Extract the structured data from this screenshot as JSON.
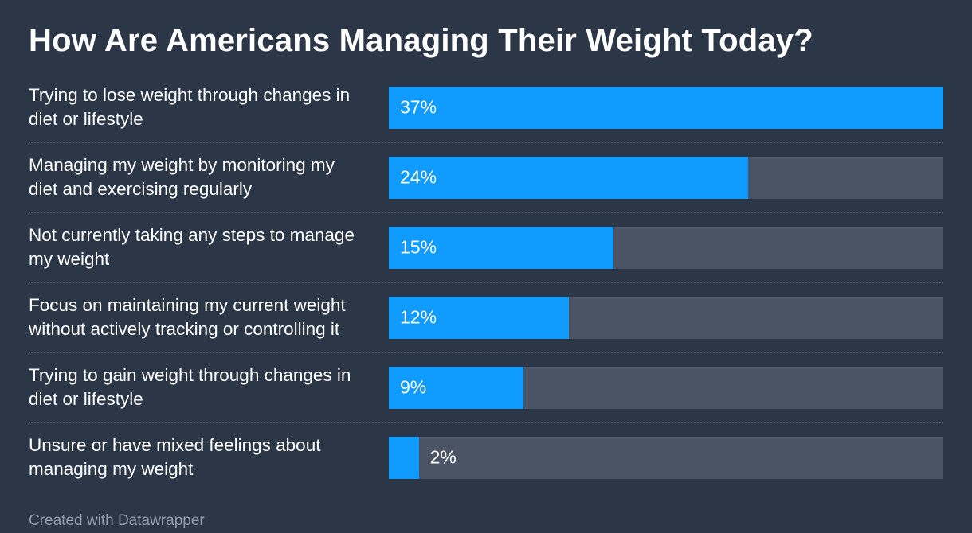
{
  "title": "How Are Americans Managing Their Weight Today?",
  "footer": "Created with Datawrapper",
  "colors": {
    "background": "#2b3647",
    "bar": "#0f9bff",
    "track": "#4a5464",
    "text": "#ffffff",
    "footer_text": "#949dab"
  },
  "chart_data": {
    "type": "bar",
    "orientation": "horizontal",
    "title": "How Are Americans Managing Their Weight Today?",
    "categories": [
      "Trying to lose weight through changes in diet or lifestyle",
      "Managing my weight by monitoring my diet and exercising regularly",
      "Not currently taking any steps to manage my weight",
      "Focus on maintaining my current weight without actively tracking or controlling it",
      "Trying to gain weight through changes in diet or lifestyle",
      "Unsure or have mixed feelings about managing my weight"
    ],
    "values": [
      37,
      24,
      15,
      12,
      9,
      2
    ],
    "value_labels": [
      "37%",
      "24%",
      "15%",
      "12%",
      "9%",
      "2%"
    ],
    "xlabel": "",
    "ylabel": "",
    "xlim": [
      0,
      37
    ],
    "grid": false,
    "legend": false,
    "annotation": "Created with Datawrapper"
  }
}
